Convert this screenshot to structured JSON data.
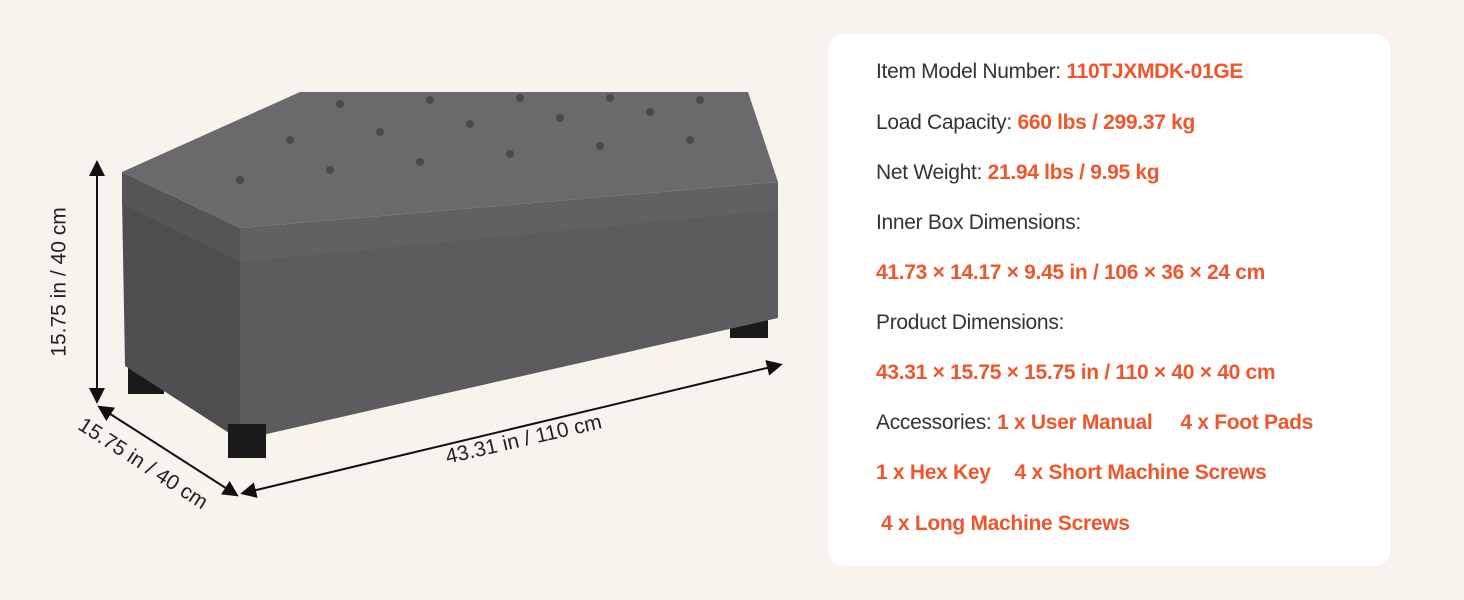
{
  "dimensions": {
    "height": "15.75 in / 40 cm",
    "depth": "15.75 in / 40 cm",
    "length": "43.31 in / 110 cm"
  },
  "specs": {
    "model_label": "Item Model Number:",
    "model_value": "110TJXMDK-01GE",
    "load_label": "Load Capacity:",
    "load_value": "660 lbs / 299.37 kg",
    "weight_label": "Net Weight:",
    "weight_value": "21.94 lbs / 9.95 kg",
    "inner_label": "Inner Box Dimensions:",
    "inner_value": "41.73 × 14.17 × 9.45 in / 106 × 36 × 24 cm",
    "product_label": "Product Dimensions:",
    "product_value": "43.31 × 15.75 × 15.75 in / 110 × 40 × 40 cm",
    "accessories_label": "Accessories:",
    "accessories": [
      "1 x User Manual",
      "4 x Foot Pads",
      "1 x Hex Key",
      "4 x Short Machine Screws",
      "4 x Long Machine Screws"
    ]
  },
  "colors": {
    "accent": "#f0562b",
    "background": "#f8f3ec",
    "fabric": "#5a5a5c"
  }
}
